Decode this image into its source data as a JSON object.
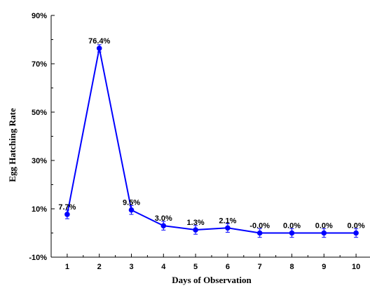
{
  "chart_data": {
    "type": "line",
    "title": "",
    "xlabel": "Days of Observation",
    "ylabel": "Egg Hatching Rate",
    "x": [
      1,
      2,
      3,
      4,
      5,
      6,
      7,
      8,
      9,
      10
    ],
    "x_tick_labels": [
      "1",
      "2",
      "3",
      "4",
      "5",
      "6",
      "7",
      "8",
      "9",
      "10"
    ],
    "ylim": [
      -10,
      90
    ],
    "y_ticks": [
      -10,
      10,
      30,
      50,
      70,
      90
    ],
    "y_tick_labels": [
      "-10%",
      "10%",
      "30%",
      "50%",
      "70%",
      "90%"
    ],
    "series": [
      {
        "values": [
          7.7,
          76.4,
          9.5,
          3.0,
          1.3,
          2.1,
          0.0,
          0.0,
          0.0,
          0.0
        ],
        "error": [
          1.8,
          1.5,
          1.8,
          1.8,
          1.8,
          1.8,
          1.8,
          1.8,
          1.8,
          1.8
        ],
        "data_labels": [
          "7.7%",
          "76.4%",
          "9.5%",
          "3.0%",
          "1.3%",
          "2.1%",
          "-0.0%",
          "0.0%",
          "0.0%",
          "0.0%"
        ],
        "color": "#0000ff"
      }
    ],
    "grid": false,
    "legend": "none"
  }
}
